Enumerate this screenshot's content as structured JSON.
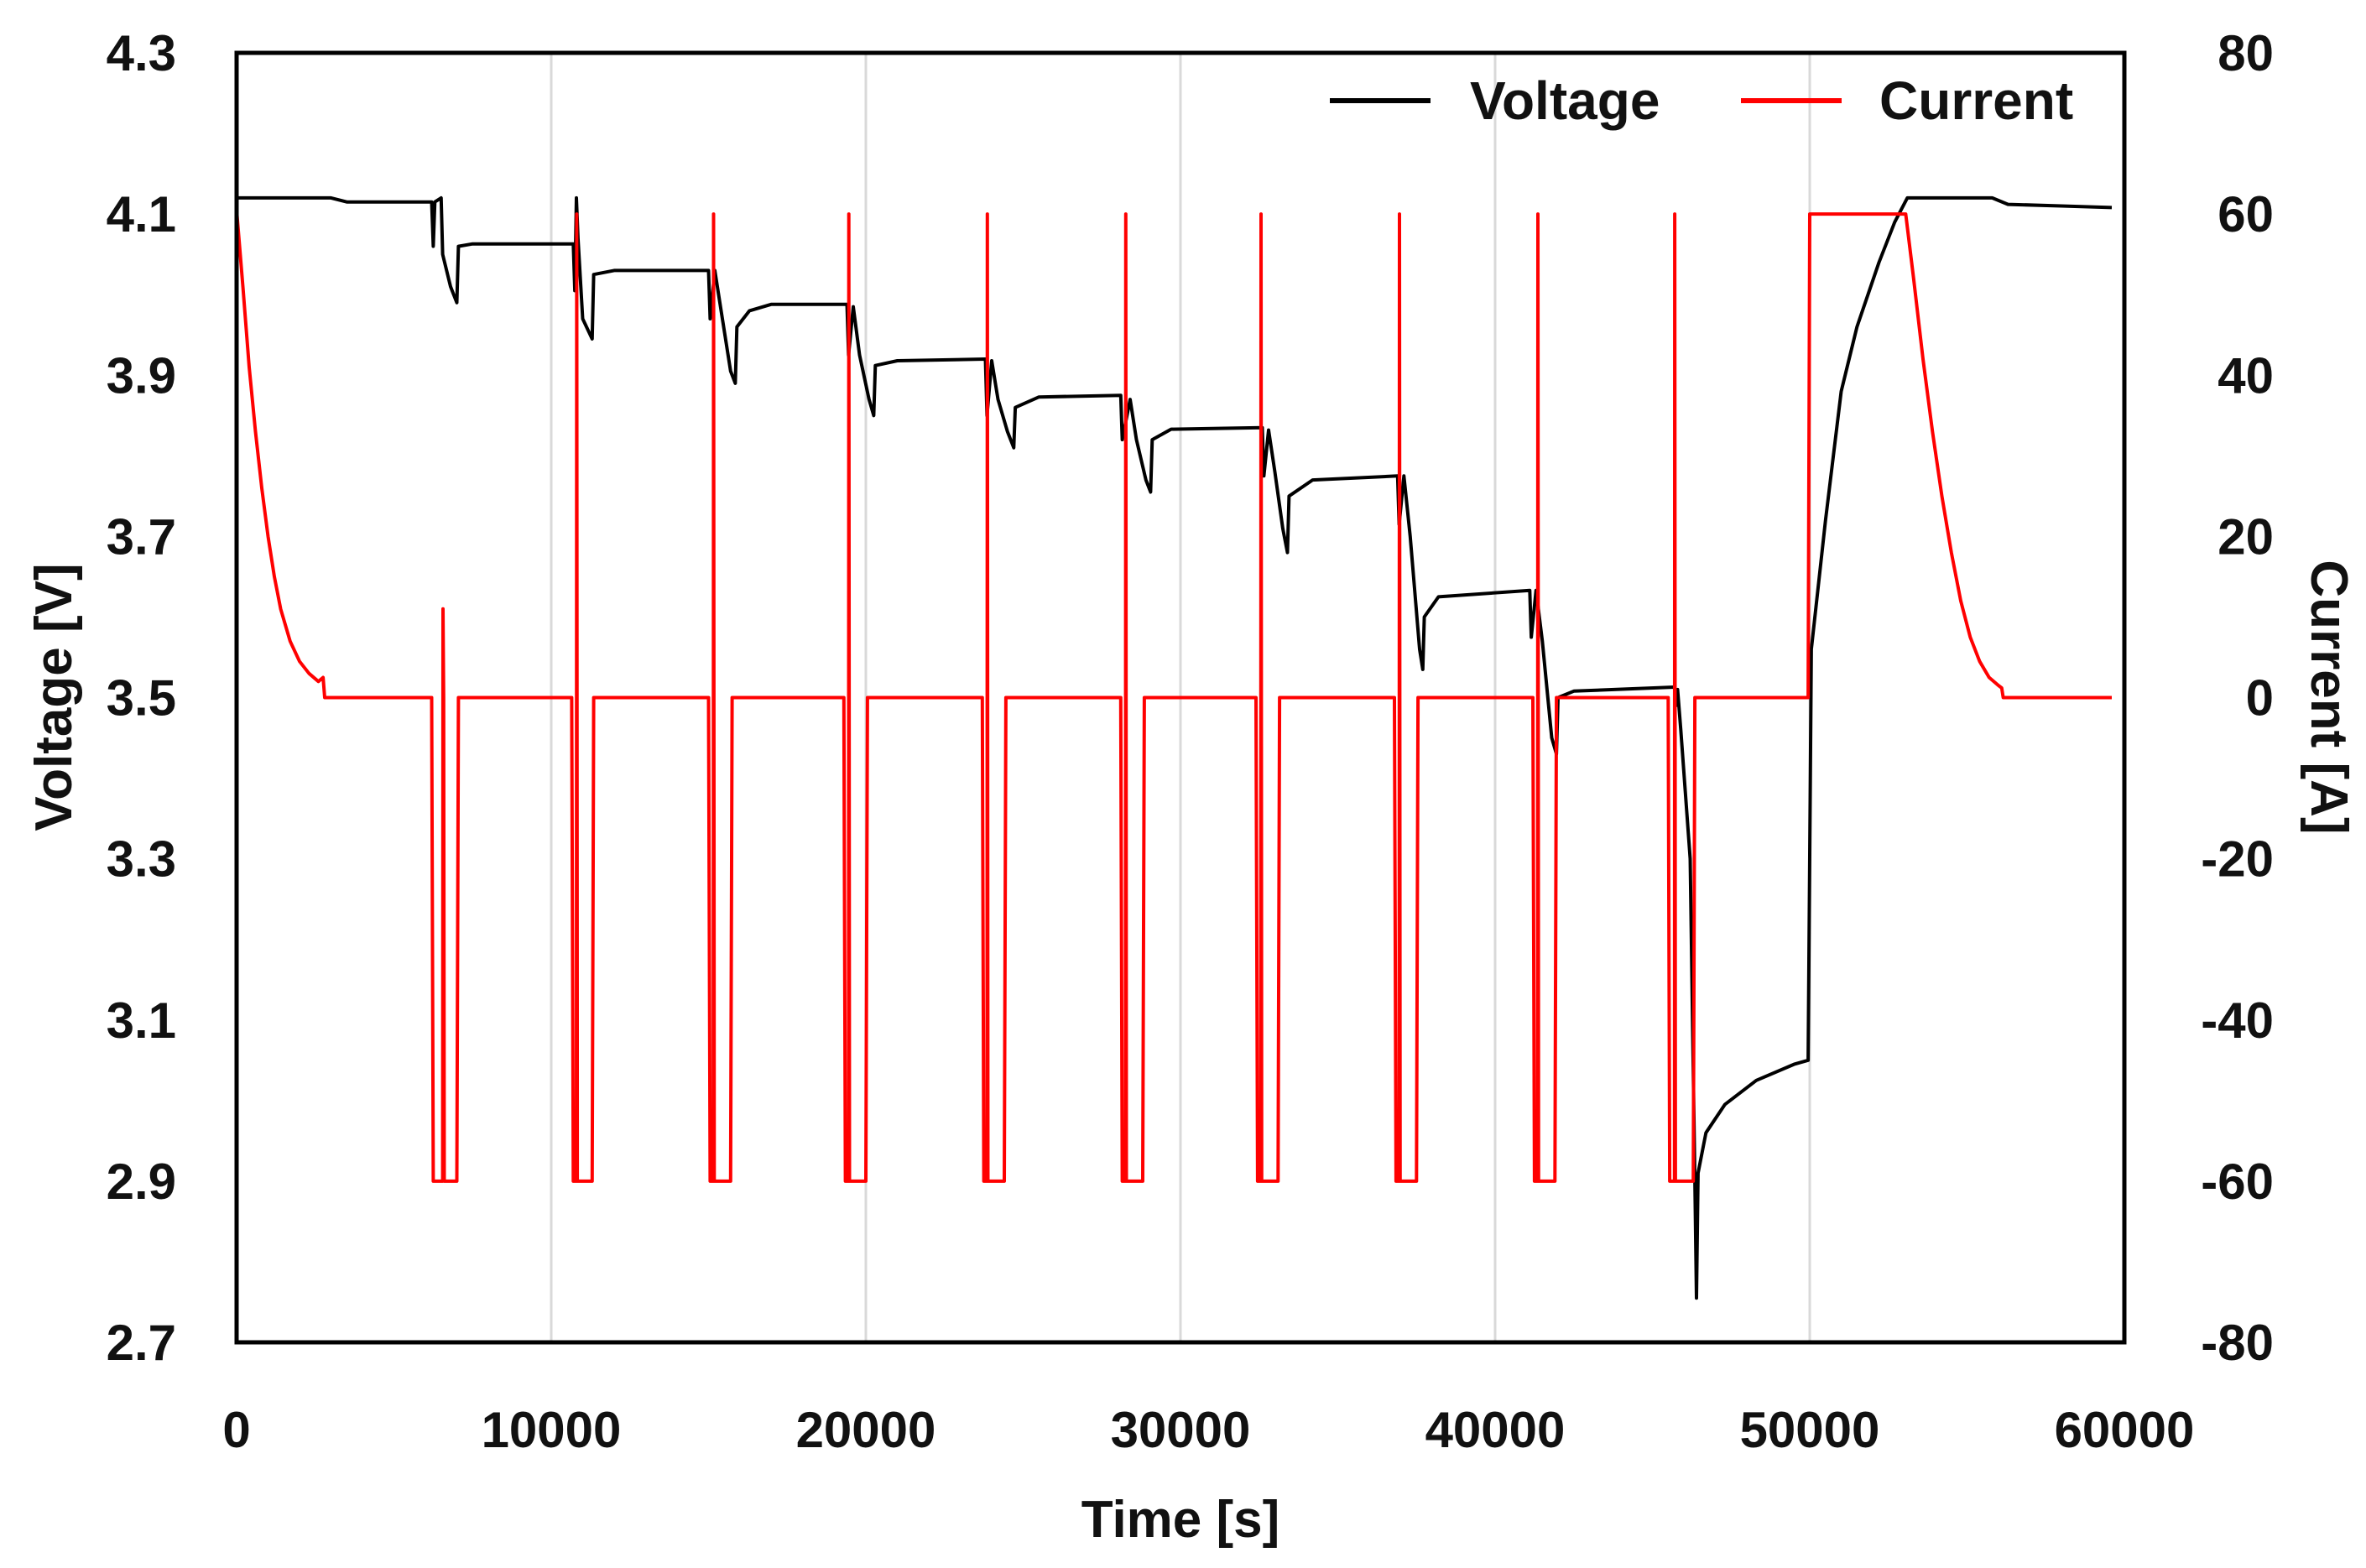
{
  "chart_data": {
    "type": "line",
    "title": "",
    "xlabel": "Time [s]",
    "ylabel_left": "Voltage [V]",
    "ylabel_right": "Current [A]",
    "xlim": [
      0,
      60000
    ],
    "ylim_left": [
      2.7,
      4.3
    ],
    "ylim_right": [
      -80,
      80
    ],
    "grid": "vertical",
    "legend_position": "top-right",
    "x_ticks": [
      "0",
      "10000",
      "20000",
      "30000",
      "40000",
      "50000",
      "60000"
    ],
    "y_left_ticks": [
      "2.7",
      "2.9",
      "3.1",
      "3.3",
      "3.5",
      "3.7",
      "3.9",
      "4.1",
      "4.3"
    ],
    "y_right_ticks": [
      "-80",
      "-60",
      "-40",
      "-20",
      "0",
      "20",
      "40",
      "60",
      "80"
    ],
    "series": [
      {
        "name": "Voltage",
        "axis": "left",
        "color": "#000000",
        "points": [
          [
            0,
            4.12
          ],
          [
            3000,
            4.12
          ],
          [
            3500,
            4.115
          ],
          [
            6200,
            4.115
          ],
          [
            6250,
            4.06
          ],
          [
            6300,
            4.115
          ],
          [
            6500,
            4.12
          ],
          [
            6550,
            4.05
          ],
          [
            6800,
            4.01
          ],
          [
            7000,
            3.99
          ],
          [
            7050,
            4.06
          ],
          [
            7500,
            4.063
          ],
          [
            10700,
            4.063
          ],
          [
            10750,
            4.005
          ],
          [
            10800,
            4.12
          ],
          [
            10850,
            4.07
          ],
          [
            11000,
            3.97
          ],
          [
            11300,
            3.945
          ],
          [
            11350,
            4.025
          ],
          [
            12000,
            4.03
          ],
          [
            15000,
            4.03
          ],
          [
            15050,
            3.97
          ],
          [
            15200,
            4.03
          ],
          [
            15400,
            3.98
          ],
          [
            15700,
            3.905
          ],
          [
            15850,
            3.89
          ],
          [
            15900,
            3.96
          ],
          [
            16300,
            3.98
          ],
          [
            17000,
            3.988
          ],
          [
            19400,
            3.988
          ],
          [
            19450,
            3.925
          ],
          [
            19600,
            3.985
          ],
          [
            19800,
            3.925
          ],
          [
            20100,
            3.87
          ],
          [
            20250,
            3.85
          ],
          [
            20300,
            3.912
          ],
          [
            21000,
            3.918
          ],
          [
            23800,
            3.92
          ],
          [
            23850,
            3.85
          ],
          [
            24000,
            3.918
          ],
          [
            24200,
            3.87
          ],
          [
            24500,
            3.83
          ],
          [
            24700,
            3.81
          ],
          [
            24750,
            3.86
          ],
          [
            25500,
            3.873
          ],
          [
            28100,
            3.875
          ],
          [
            28150,
            3.82
          ],
          [
            28400,
            3.87
          ],
          [
            28600,
            3.82
          ],
          [
            28900,
            3.77
          ],
          [
            29050,
            3.755
          ],
          [
            29100,
            3.82
          ],
          [
            29700,
            3.833
          ],
          [
            32600,
            3.835
          ],
          [
            32650,
            3.775
          ],
          [
            32800,
            3.832
          ],
          [
            33000,
            3.78
          ],
          [
            33250,
            3.71
          ],
          [
            33400,
            3.68
          ],
          [
            33450,
            3.75
          ],
          [
            34200,
            3.77
          ],
          [
            36900,
            3.775
          ],
          [
            36950,
            3.715
          ],
          [
            37100,
            3.775
          ],
          [
            37300,
            3.7
          ],
          [
            37600,
            3.56
          ],
          [
            37700,
            3.535
          ],
          [
            37750,
            3.6
          ],
          [
            38200,
            3.625
          ],
          [
            41100,
            3.633
          ],
          [
            41150,
            3.575
          ],
          [
            41300,
            3.633
          ],
          [
            41500,
            3.57
          ],
          [
            41800,
            3.45
          ],
          [
            41950,
            3.43
          ],
          [
            42000,
            3.5
          ],
          [
            42500,
            3.508
          ],
          [
            45700,
            3.513
          ],
          [
            45750,
            3.49
          ],
          [
            45800,
            3.51
          ],
          [
            45900,
            3.46
          ],
          [
            46200,
            3.3
          ],
          [
            46350,
            2.9
          ],
          [
            46400,
            2.755
          ],
          [
            46450,
            2.91
          ],
          [
            46700,
            2.96
          ],
          [
            47300,
            2.995
          ],
          [
            48300,
            3.025
          ],
          [
            49500,
            3.045
          ],
          [
            49950,
            3.05
          ],
          [
            50050,
            3.56
          ],
          [
            50500,
            3.72
          ],
          [
            51000,
            3.88
          ],
          [
            51500,
            3.96
          ],
          [
            52200,
            4.04
          ],
          [
            52700,
            4.09
          ],
          [
            53100,
            4.12
          ],
          [
            55800,
            4.12
          ],
          [
            56300,
            4.112
          ],
          [
            58000,
            4.11
          ],
          [
            59600,
            4.108
          ]
        ]
      },
      {
        "name": "Current",
        "axis": "right",
        "color": "#ff0000",
        "points": [
          [
            0,
            0
          ],
          [
            10,
            60
          ],
          [
            200,
            51
          ],
          [
            400,
            41
          ],
          [
            600,
            33
          ],
          [
            800,
            26
          ],
          [
            1000,
            20
          ],
          [
            1200,
            15
          ],
          [
            1400,
            11
          ],
          [
            1700,
            7
          ],
          [
            2000,
            4.5
          ],
          [
            2300,
            3.0
          ],
          [
            2600,
            2.0
          ],
          [
            2750,
            2.5
          ],
          [
            2800,
            0
          ],
          [
            6200,
            0
          ],
          [
            6250,
            -60
          ],
          [
            6550,
            -60
          ],
          [
            6560,
            11
          ],
          [
            6580,
            0
          ],
          [
            6600,
            -60
          ],
          [
            7000,
            -60
          ],
          [
            7050,
            0
          ],
          [
            10650,
            0
          ],
          [
            10700,
            -60
          ],
          [
            10800,
            -60
          ],
          [
            10810,
            60
          ],
          [
            10830,
            -60
          ],
          [
            11300,
            -60
          ],
          [
            11350,
            0
          ],
          [
            15000,
            0
          ],
          [
            15050,
            -60
          ],
          [
            15150,
            -60
          ],
          [
            15160,
            60
          ],
          [
            15180,
            -60
          ],
          [
            15700,
            -60
          ],
          [
            15750,
            0
          ],
          [
            19300,
            0
          ],
          [
            19350,
            -60
          ],
          [
            19450,
            -60
          ],
          [
            19460,
            60
          ],
          [
            19480,
            -60
          ],
          [
            20000,
            -60
          ],
          [
            20050,
            0
          ],
          [
            23700,
            0
          ],
          [
            23750,
            -60
          ],
          [
            23850,
            -60
          ],
          [
            23860,
            60
          ],
          [
            23880,
            -60
          ],
          [
            24400,
            -60
          ],
          [
            24450,
            0
          ],
          [
            28100,
            0
          ],
          [
            28150,
            -60
          ],
          [
            28250,
            -60
          ],
          [
            28260,
            60
          ],
          [
            28280,
            -60
          ],
          [
            28800,
            -60
          ],
          [
            28850,
            0
          ],
          [
            32400,
            0
          ],
          [
            32450,
            -60
          ],
          [
            32550,
            -60
          ],
          [
            32560,
            60
          ],
          [
            32580,
            -60
          ],
          [
            33100,
            -60
          ],
          [
            33150,
            0
          ],
          [
            36800,
            0
          ],
          [
            36850,
            -60
          ],
          [
            36950,
            -60
          ],
          [
            36960,
            60
          ],
          [
            36980,
            -60
          ],
          [
            37500,
            -60
          ],
          [
            37550,
            0
          ],
          [
            41200,
            0
          ],
          [
            41250,
            -60
          ],
          [
            41350,
            -60
          ],
          [
            41360,
            60
          ],
          [
            41380,
            -60
          ],
          [
            41900,
            -60
          ],
          [
            41950,
            0
          ],
          [
            45500,
            0
          ],
          [
            45550,
            -60
          ],
          [
            45700,
            -60
          ],
          [
            45710,
            60
          ],
          [
            45730,
            -60
          ],
          [
            46300,
            -60
          ],
          [
            46350,
            0
          ],
          [
            49950,
            0
          ],
          [
            50000,
            60
          ],
          [
            53050,
            60
          ],
          [
            53300,
            52
          ],
          [
            53600,
            42
          ],
          [
            53900,
            33
          ],
          [
            54200,
            25
          ],
          [
            54500,
            18
          ],
          [
            54800,
            12
          ],
          [
            55100,
            7.5
          ],
          [
            55400,
            4.5
          ],
          [
            55700,
            2.5
          ],
          [
            56000,
            1.5
          ],
          [
            56100,
            1.2
          ],
          [
            56150,
            0
          ],
          [
            59600,
            0
          ]
        ]
      }
    ]
  },
  "legend": {
    "voltage_label": "Voltage",
    "current_label": "Current",
    "voltage_color": "#000000",
    "current_color": "#ff0000"
  }
}
